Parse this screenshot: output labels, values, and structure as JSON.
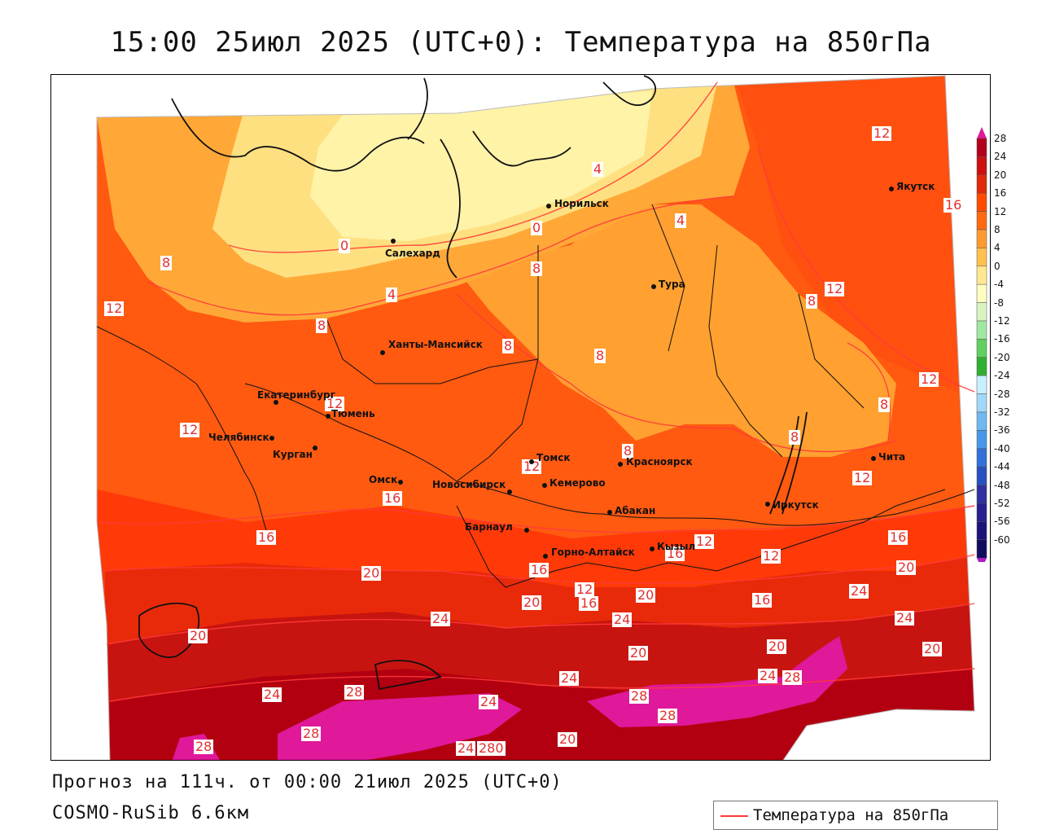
{
  "title": "15:00 25июл 2025 (UTC+0): Температура на 850гПа",
  "footer": {
    "forecast": "Прогноз на 111ч. от 00:00 21июл 2025 (UTC+0)",
    "model": "COSMO-RuSib 6.6км"
  },
  "legend": {
    "label": "Температура на 850гПа",
    "line_color": "#ff3a3a"
  },
  "colorbar": {
    "levels": [
      "28",
      "24",
      "20",
      "16",
      "12",
      "8",
      "4",
      "0",
      "-4",
      "-8",
      "-12",
      "-16",
      "-20",
      "-24",
      "-28",
      "-32",
      "-36",
      "-40",
      "-44",
      "-48",
      "-52",
      "-56",
      "-60"
    ],
    "colors": [
      "#b3001b",
      "#cc1010",
      "#e02a0a",
      "#ff4a00",
      "#ff6a10",
      "#ff9a30",
      "#ffc050",
      "#ffe890",
      "#ffffc0",
      "#d8f5c0",
      "#a0e8a0",
      "#60d060",
      "#30b030",
      "#c8f0ff",
      "#a0d8f8",
      "#70b8f0",
      "#4898e8",
      "#3070d8",
      "#2850c0",
      "#3030a0",
      "#28208c",
      "#1c147a",
      "#120c60"
    ],
    "top_color": "#e0189a",
    "bottom_color": "#b01cc8"
  },
  "cities": [
    {
      "name": "Норильск",
      "dot": [
        673,
        252
      ],
      "label": [
        680,
        242
      ]
    },
    {
      "name": "Салехард",
      "dot": [
        482,
        295
      ],
      "label": [
        472,
        303
      ]
    },
    {
      "name": "Тура",
      "dot": [
        802,
        351
      ],
      "label": [
        808,
        341
      ]
    },
    {
      "name": "Якутск",
      "dot": [
        1094,
        231
      ],
      "label": [
        1100,
        221
      ]
    },
    {
      "name": "Ханты-Мансийск",
      "dot": [
        469,
        432
      ],
      "label": [
        476,
        415
      ]
    },
    {
      "name": "Екатеринбург",
      "dot": [
        338,
        493
      ],
      "label": [
        315,
        477
      ]
    },
    {
      "name": "Тюмень",
      "dot": [
        402,
        510
      ],
      "label": [
        406,
        500
      ]
    },
    {
      "name": "Челябинск",
      "dot": [
        333,
        537
      ],
      "label": [
        255,
        529
      ]
    },
    {
      "name": "Курган",
      "dot": [
        386,
        549
      ],
      "label": [
        334,
        550
      ]
    },
    {
      "name": "Омск",
      "dot": [
        491,
        591
      ],
      "label": [
        452,
        581
      ]
    },
    {
      "name": "Томск",
      "dot": [
        652,
        566
      ],
      "label": [
        658,
        554
      ]
    },
    {
      "name": "Красноярск",
      "dot": [
        761,
        569
      ],
      "label": [
        768,
        559
      ]
    },
    {
      "name": "Новосибирск",
      "dot": [
        625,
        603
      ],
      "label": [
        530,
        587
      ]
    },
    {
      "name": "Кемерово",
      "dot": [
        668,
        595
      ],
      "label": [
        674,
        585
      ]
    },
    {
      "name": "Барнаул",
      "dot": [
        646,
        650
      ],
      "label": [
        570,
        639
      ]
    },
    {
      "name": "Абакан",
      "dot": [
        748,
        628
      ],
      "label": [
        754,
        619
      ]
    },
    {
      "name": "Иркутск",
      "dot": [
        942,
        618
      ],
      "label": [
        948,
        612
      ]
    },
    {
      "name": "Чита",
      "dot": [
        1072,
        562
      ],
      "label": [
        1078,
        553
      ]
    },
    {
      "name": "Кызыл",
      "dot": [
        800,
        673
      ],
      "label": [
        806,
        663
      ]
    },
    {
      "name": "Горно-Алтайск",
      "dot": [
        669,
        682
      ],
      "label": [
        676,
        670
      ]
    }
  ],
  "contour_labels": [
    {
      "text": "12",
      "pos": [
        1070,
        154
      ]
    },
    {
      "text": "4",
      "pos": [
        726,
        198
      ]
    },
    {
      "text": "16",
      "pos": [
        1158,
        242
      ]
    },
    {
      "text": "0",
      "pos": [
        651,
        270
      ]
    },
    {
      "text": "4",
      "pos": [
        828,
        261
      ]
    },
    {
      "text": "0",
      "pos": [
        415,
        292
      ]
    },
    {
      "text": "8",
      "pos": [
        196,
        313
      ]
    },
    {
      "text": "8",
      "pos": [
        651,
        320
      ]
    },
    {
      "text": "12",
      "pos": [
        1012,
        345
      ]
    },
    {
      "text": "4",
      "pos": [
        473,
        352
      ]
    },
    {
      "text": "8",
      "pos": [
        989,
        360
      ]
    },
    {
      "text": "12",
      "pos": [
        127,
        369
      ]
    },
    {
      "text": "8",
      "pos": [
        387,
        390
      ]
    },
    {
      "text": "8",
      "pos": [
        616,
        415
      ]
    },
    {
      "text": "8",
      "pos": [
        729,
        427
      ]
    },
    {
      "text": "12",
      "pos": [
        1128,
        456
      ]
    },
    {
      "text": "12",
      "pos": [
        398,
        486
      ]
    },
    {
      "text": "8",
      "pos": [
        1078,
        487
      ]
    },
    {
      "text": "12",
      "pos": [
        220,
        518
      ]
    },
    {
      "text": "8",
      "pos": [
        968,
        527
      ]
    },
    {
      "text": "8",
      "pos": [
        763,
        544
      ]
    },
    {
      "text": "12",
      "pos": [
        640,
        563
      ]
    },
    {
      "text": "12",
      "pos": [
        1046,
        577
      ]
    },
    {
      "text": "16",
      "pos": [
        469,
        602
      ]
    },
    {
      "text": "16",
      "pos": [
        314,
        650
      ]
    },
    {
      "text": "16",
      "pos": [
        1090,
        650
      ]
    },
    {
      "text": "12",
      "pos": [
        852,
        655
      ]
    },
    {
      "text": "12",
      "pos": [
        934,
        673
      ]
    },
    {
      "text": "16",
      "pos": [
        816,
        670
      ]
    },
    {
      "text": "20",
      "pos": [
        1100,
        687
      ]
    },
    {
      "text": "16",
      "pos": [
        649,
        690
      ]
    },
    {
      "text": "20",
      "pos": [
        443,
        694
      ]
    },
    {
      "text": "12",
      "pos": [
        705,
        714
      ]
    },
    {
      "text": "24",
      "pos": [
        1042,
        716
      ]
    },
    {
      "text": "20",
      "pos": [
        780,
        721
      ]
    },
    {
      "text": "16",
      "pos": [
        923,
        727
      ]
    },
    {
      "text": "20",
      "pos": [
        640,
        730
      ]
    },
    {
      "text": "16",
      "pos": [
        710,
        731
      ]
    },
    {
      "text": "24",
      "pos": [
        528,
        750
      ]
    },
    {
      "text": "24",
      "pos": [
        751,
        751
      ]
    },
    {
      "text": "24",
      "pos": [
        1098,
        749
      ]
    },
    {
      "text": "20",
      "pos": [
        230,
        771
      ]
    },
    {
      "text": "20",
      "pos": [
        941,
        784
      ]
    },
    {
      "text": "20",
      "pos": [
        1132,
        787
      ]
    },
    {
      "text": "20",
      "pos": [
        771,
        792
      ]
    },
    {
      "text": "24",
      "pos": [
        686,
        823
      ]
    },
    {
      "text": "24",
      "pos": [
        930,
        820
      ]
    },
    {
      "text": "28",
      "pos": [
        960,
        822
      ]
    },
    {
      "text": "28",
      "pos": [
        422,
        840
      ]
    },
    {
      "text": "24",
      "pos": [
        321,
        843
      ]
    },
    {
      "text": "28",
      "pos": [
        772,
        845
      ]
    },
    {
      "text": "24",
      "pos": [
        587,
        852
      ]
    },
    {
      "text": "28",
      "pos": [
        807,
        869
      ]
    },
    {
      "text": "28",
      "pos": [
        369,
        891
      ]
    },
    {
      "text": "20",
      "pos": [
        684,
        898
      ]
    },
    {
      "text": "28",
      "pos": [
        237,
        907
      ]
    },
    {
      "text": "24",
      "pos": [
        559,
        909
      ]
    },
    {
      "text": "280",
      "pos": [
        585,
        909
      ]
    }
  ]
}
